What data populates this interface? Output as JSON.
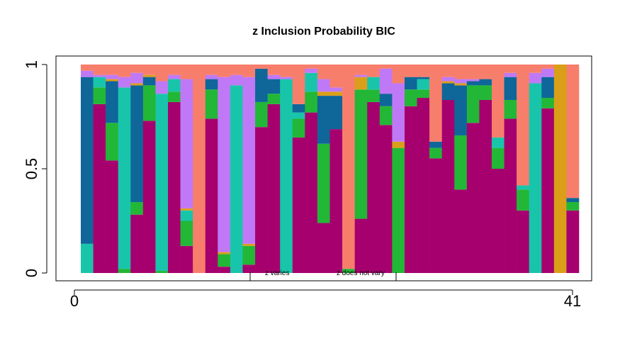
{
  "chart_data": {
    "type": "bar",
    "title": "z Inclusion Probability BIC",
    "xlabel": "",
    "ylabel": "",
    "xlim": [
      0,
      41
    ],
    "ylim": [
      0,
      1
    ],
    "x_ticks": [
      "0",
      "41"
    ],
    "y_ticks": [
      "0",
      "0.5",
      "1"
    ],
    "legend": [
      "z varies",
      "z does not vary"
    ],
    "colors": [
      "#A6006E",
      "#22B736",
      "#19C5AA",
      "#0E6699",
      "#DB9E19",
      "#C079F6",
      "#F87E6C"
    ],
    "series_names": [],
    "bars": [
      [
        0.0,
        0.0,
        0.14,
        0.8,
        0.0,
        0.03,
        0.03
      ],
      [
        0.81,
        0.08,
        0.05,
        0.0,
        0.0,
        0.01,
        0.05
      ],
      [
        0.54,
        0.18,
        0.0,
        0.2,
        0.01,
        0.02,
        0.05
      ],
      [
        0.0,
        0.02,
        0.87,
        0.0,
        0.0,
        0.05,
        0.06
      ],
      [
        0.28,
        0.06,
        0.0,
        0.56,
        0.01,
        0.05,
        0.04
      ],
      [
        0.73,
        0.17,
        0.0,
        0.04,
        0.01,
        0.0,
        0.05
      ],
      [
        0.0,
        0.01,
        0.85,
        0.0,
        0.0,
        0.06,
        0.08
      ],
      [
        0.82,
        0.05,
        0.06,
        0.0,
        0.0,
        0.02,
        0.05
      ],
      [
        0.13,
        0.12,
        0.05,
        0.0,
        0.01,
        0.62,
        0.07
      ],
      [
        0.0,
        0.0,
        0.0,
        0.0,
        0.0,
        0.0,
        1.0
      ],
      [
        0.74,
        0.14,
        0.0,
        0.05,
        0.0,
        0.02,
        0.05
      ],
      [
        0.03,
        0.06,
        0.0,
        0.0,
        0.01,
        0.84,
        0.06
      ],
      [
        0.0,
        0.0,
        0.9,
        0.0,
        0.0,
        0.05,
        0.05
      ],
      [
        0.04,
        0.09,
        0.0,
        0.0,
        0.01,
        0.8,
        0.06
      ],
      [
        0.7,
        0.12,
        0.0,
        0.16,
        0.0,
        0.0,
        0.02
      ],
      [
        0.81,
        0.05,
        0.0,
        0.07,
        0.0,
        0.02,
        0.05
      ],
      [
        0.0,
        0.0,
        0.93,
        0.0,
        0.0,
        0.01,
        0.06
      ],
      [
        0.65,
        0.09,
        0.03,
        0.04,
        0.0,
        0.0,
        0.19
      ],
      [
        0.77,
        0.1,
        0.09,
        0.0,
        0.0,
        0.02,
        0.02
      ],
      [
        0.24,
        0.38,
        0.0,
        0.23,
        0.02,
        0.06,
        0.07
      ],
      [
        0.69,
        0.0,
        0.0,
        0.16,
        0.02,
        0.02,
        0.11
      ],
      [
        0.0,
        0.02,
        0.0,
        0.0,
        0.0,
        0.0,
        0.98
      ],
      [
        0.26,
        0.62,
        0.0,
        0.0,
        0.06,
        0.01,
        0.05
      ],
      [
        0.82,
        0.06,
        0.06,
        0.0,
        0.0,
        0.0,
        0.06
      ],
      [
        0.71,
        0.09,
        0.0,
        0.06,
        0.0,
        0.12,
        0.02
      ],
      [
        0.0,
        0.6,
        0.0,
        0.0,
        0.03,
        0.28,
        0.09
      ],
      [
        0.8,
        0.08,
        0.0,
        0.06,
        0.0,
        0.0,
        0.06
      ],
      [
        0.84,
        0.04,
        0.05,
        0.01,
        0.0,
        0.0,
        0.06
      ],
      [
        0.55,
        0.05,
        0.0,
        0.03,
        0.0,
        0.0,
        0.37
      ],
      [
        0.83,
        0.0,
        0.0,
        0.08,
        0.01,
        0.02,
        0.06
      ],
      [
        0.4,
        0.26,
        0.0,
        0.24,
        0.01,
        0.02,
        0.07
      ],
      [
        0.72,
        0.18,
        0.0,
        0.02,
        0.0,
        0.01,
        0.07
      ],
      [
        0.83,
        0.07,
        0.0,
        0.03,
        0.0,
        0.0,
        0.07
      ],
      [
        0.5,
        0.1,
        0.05,
        0.0,
        0.0,
        0.0,
        0.35
      ],
      [
        0.74,
        0.09,
        0.0,
        0.11,
        0.0,
        0.02,
        0.04
      ],
      [
        0.3,
        0.1,
        0.02,
        0.0,
        0.0,
        0.0,
        0.58
      ],
      [
        0.0,
        0.0,
        0.91,
        0.0,
        0.0,
        0.05,
        0.04
      ],
      [
        0.79,
        0.05,
        0.0,
        0.1,
        0.0,
        0.04,
        0.02
      ],
      [
        0.0,
        0.0,
        0.0,
        0.0,
        1.0,
        0.0,
        0.0
      ],
      [
        0.3,
        0.04,
        0.0,
        0.02,
        0.0,
        0.0,
        0.64
      ]
    ]
  }
}
